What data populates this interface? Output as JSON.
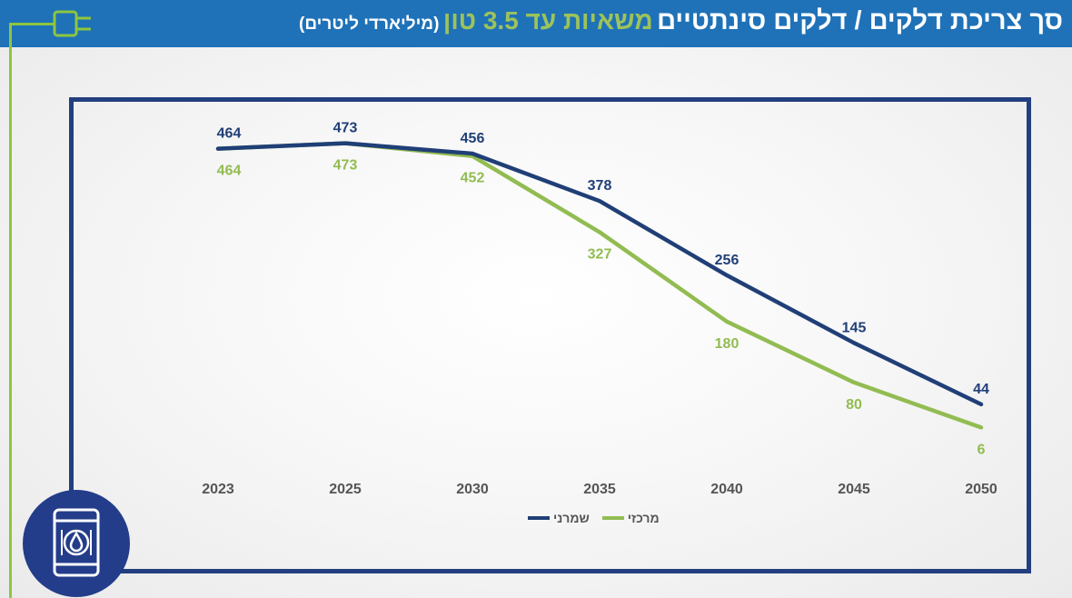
{
  "header": {
    "title_main": "סך צריכת דלקים / דלקים סינתטיים",
    "title_sub": "משאיות עד 3.5 טון",
    "title_unit": "(מיליארדי ליטרים)"
  },
  "colors": {
    "header_bg": "#1f72b8",
    "accent_green": "#8dc63f",
    "navy": "#243f80"
  },
  "icons": {
    "plug": "plug-icon",
    "barrel": "oil-barrel-icon"
  },
  "chart_data": {
    "type": "line",
    "title": "סך צריכת דלקים / דלקים סינתטיים משאיות עד 3.5 טון (מיליארדי ליטרים)",
    "categories": [
      "2023",
      "2025",
      "2030",
      "2035",
      "2040",
      "2045",
      "2050"
    ],
    "series": [
      {
        "name": "שמרני",
        "color": "#203f77",
        "values": [
          464,
          473,
          456,
          378,
          256,
          145,
          44
        ]
      },
      {
        "name": "מרכזי",
        "color": "#92bc52",
        "values": [
          464,
          473,
          452,
          327,
          180,
          80,
          6
        ]
      }
    ],
    "ylim": [
      0,
      500
    ],
    "xlabel": "",
    "ylabel": "",
    "grid": false,
    "legend_position": "bottom-center"
  }
}
